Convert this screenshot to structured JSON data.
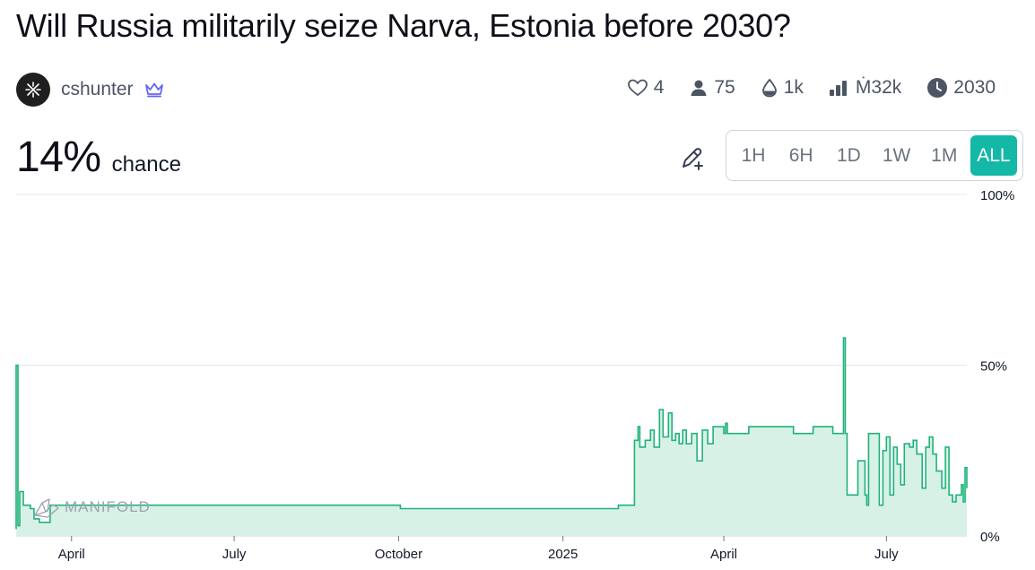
{
  "market": {
    "title": "Will Russia militarily seize Narva, Estonia before 2030?",
    "creator": "cshunter",
    "probability": "14%",
    "probability_label": "chance"
  },
  "stats": {
    "likes": "4",
    "traders": "75",
    "liquidity": "1k",
    "volume": "Ṁ32k",
    "close": "2030"
  },
  "time_ranges": [
    {
      "label": "1H",
      "active": false
    },
    {
      "label": "6H",
      "active": false
    },
    {
      "label": "1D",
      "active": false
    },
    {
      "label": "1W",
      "active": false
    },
    {
      "label": "1M",
      "active": false
    },
    {
      "label": "ALL",
      "active": true
    }
  ],
  "chart_data": {
    "type": "area",
    "watermark": "MANIFOLD",
    "y_ticks": [
      "100%",
      "50%",
      "0%"
    ],
    "x_ticks": [
      "April",
      "July",
      "October",
      "2025",
      "April",
      "July"
    ],
    "ylim": [
      0,
      100
    ],
    "x_range": [
      "2024-03-01",
      "2025-08-15"
    ],
    "x": [
      "2024-03-01",
      "2024-03-01",
      "2024-03-01",
      "2024-03-02",
      "2024-03-03",
      "2024-03-04",
      "2024-03-05",
      "2024-03-07",
      "2024-03-09",
      "2024-03-11",
      "2024-03-12",
      "2024-03-14",
      "2024-03-17",
      "2024-03-20",
      "2024-10-02",
      "2025-02-01",
      "2025-02-10",
      "2025-02-12",
      "2025-02-13",
      "2025-02-16",
      "2025-02-19",
      "2025-02-21",
      "2025-02-24",
      "2025-02-26",
      "2025-03-01",
      "2025-03-03",
      "2025-03-05",
      "2025-03-07",
      "2025-03-09",
      "2025-03-11",
      "2025-03-14",
      "2025-03-17",
      "2025-03-20",
      "2025-03-23",
      "2025-03-26",
      "2025-03-29",
      "2025-04-01",
      "2025-04-02",
      "2025-04-03",
      "2025-04-15",
      "2025-04-20",
      "2025-04-30",
      "2025-05-10",
      "2025-05-20",
      "2025-05-21",
      "2025-06-01",
      "2025-06-04",
      "2025-06-07",
      "2025-06-08",
      "2025-06-09",
      "2025-06-10",
      "2025-06-15",
      "2025-06-19",
      "2025-06-20",
      "2025-06-21",
      "2025-06-26",
      "2025-06-27",
      "2025-06-29",
      "2025-07-01",
      "2025-07-03",
      "2025-07-05",
      "2025-07-07",
      "2025-07-09",
      "2025-07-11",
      "2025-07-14",
      "2025-07-16",
      "2025-07-18",
      "2025-07-21",
      "2025-07-23",
      "2025-07-25",
      "2025-07-27",
      "2025-07-29",
      "2025-08-01",
      "2025-08-03",
      "2025-08-05",
      "2025-08-07",
      "2025-08-09",
      "2025-08-11",
      "2025-08-12",
      "2025-08-13",
      "2025-08-14",
      "2025-08-15"
    ],
    "y": [
      2,
      20,
      50,
      3,
      13,
      13,
      9,
      9,
      8,
      5,
      5,
      4,
      4,
      9,
      8,
      9,
      28,
      32,
      26,
      28,
      31,
      26,
      37,
      29,
      36,
      28,
      30,
      27,
      31,
      27,
      30,
      22,
      31,
      27,
      32,
      32,
      30,
      33,
      30,
      32,
      32,
      32,
      30,
      30,
      32,
      30,
      30,
      58,
      30,
      12,
      12,
      22,
      12,
      9,
      30,
      30,
      9,
      25,
      29,
      12,
      26,
      21,
      15,
      27,
      26,
      28,
      24,
      14,
      26,
      29,
      24,
      19,
      14,
      26,
      12,
      10,
      12,
      12,
      15,
      10,
      20,
      14
    ]
  }
}
